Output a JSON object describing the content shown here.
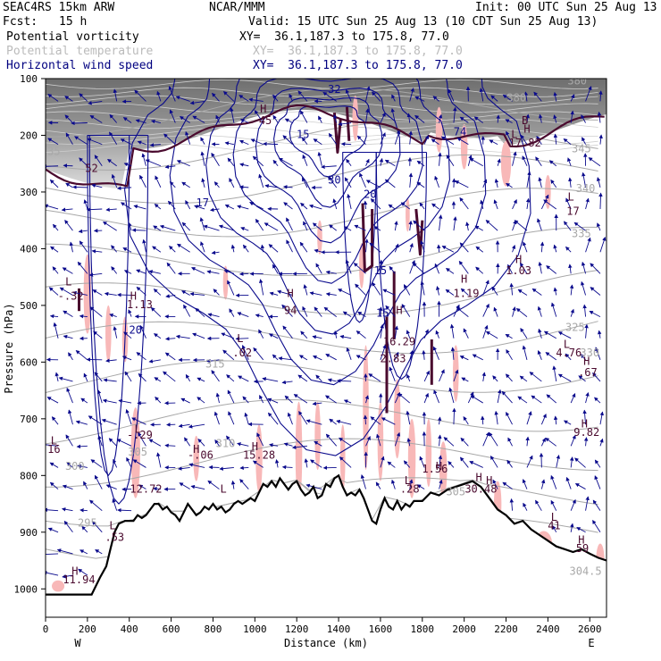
{
  "header": {
    "model": "SEAC4RS 15km ARW",
    "center": "NCAR/MMM",
    "init": "Init: 00 UTC Sun 25 Aug 13",
    "fcst_label": "Fcst:",
    "fcst_value": "15 h",
    "valid": "Valid: 15 UTC Sun 25 Aug 13 (10 CDT Sun 25 Aug 13)"
  },
  "fields": [
    {
      "name": "Potential vorticity",
      "xy": "XY=  36.1,187.3 to 175.8, 77.0",
      "color": "#000000"
    },
    {
      "name": "Potential temperature",
      "xy": "XY=  36.1,187.3 to 175.8, 77.0",
      "color": "#bbbbbb"
    },
    {
      "name": "Horizontal wind speed",
      "xy": "XY=  36.1,187.3 to 175.8, 77.0",
      "color": "#000080"
    }
  ],
  "colors": {
    "pv": "#4a0a2e",
    "theta": "#a8a8a8",
    "wind": "#0a0a8c",
    "pv_neg": "#f8b8b8",
    "terrain": "#000000"
  },
  "chart_data": {
    "type": "cross-section",
    "xlabel": "Distance (km)",
    "ylabel": "Pressure (hPa)",
    "xlim": [
      0,
      2680
    ],
    "ylim": [
      1050,
      100
    ],
    "x_ticks": [
      0,
      200,
      400,
      600,
      800,
      1000,
      1200,
      1400,
      1600,
      1800,
      2000,
      2200,
      2400,
      2600
    ],
    "y_ticks": [
      100,
      200,
      300,
      400,
      500,
      600,
      700,
      800,
      900,
      1000
    ],
    "endpoints": {
      "left": "W",
      "right": "E"
    },
    "terrain_profile": [
      [
        0,
        1010
      ],
      [
        220,
        1010
      ],
      [
        260,
        980
      ],
      [
        290,
        960
      ],
      [
        310,
        930
      ],
      [
        330,
        900
      ],
      [
        350,
        885
      ],
      [
        380,
        880
      ],
      [
        400,
        880
      ],
      [
        420,
        880
      ],
      [
        440,
        870
      ],
      [
        460,
        875
      ],
      [
        480,
        870
      ],
      [
        500,
        860
      ],
      [
        520,
        850
      ],
      [
        540,
        850
      ],
      [
        560,
        860
      ],
      [
        580,
        855
      ],
      [
        600,
        865
      ],
      [
        620,
        870
      ],
      [
        640,
        880
      ],
      [
        660,
        865
      ],
      [
        680,
        850
      ],
      [
        700,
        860
      ],
      [
        720,
        870
      ],
      [
        740,
        865
      ],
      [
        760,
        855
      ],
      [
        780,
        860
      ],
      [
        800,
        850
      ],
      [
        820,
        860
      ],
      [
        840,
        855
      ],
      [
        860,
        865
      ],
      [
        880,
        860
      ],
      [
        900,
        850
      ],
      [
        920,
        845
      ],
      [
        940,
        850
      ],
      [
        960,
        845
      ],
      [
        980,
        840
      ],
      [
        1000,
        845
      ],
      [
        1020,
        830
      ],
      [
        1040,
        815
      ],
      [
        1060,
        820
      ],
      [
        1080,
        810
      ],
      [
        1100,
        820
      ],
      [
        1120,
        805
      ],
      [
        1140,
        815
      ],
      [
        1160,
        825
      ],
      [
        1180,
        815
      ],
      [
        1200,
        810
      ],
      [
        1220,
        825
      ],
      [
        1240,
        835
      ],
      [
        1260,
        830
      ],
      [
        1280,
        820
      ],
      [
        1300,
        840
      ],
      [
        1320,
        835
      ],
      [
        1340,
        815
      ],
      [
        1360,
        820
      ],
      [
        1380,
        805
      ],
      [
        1400,
        800
      ],
      [
        1420,
        820
      ],
      [
        1440,
        835
      ],
      [
        1460,
        830
      ],
      [
        1480,
        835
      ],
      [
        1500,
        825
      ],
      [
        1520,
        840
      ],
      [
        1540,
        860
      ],
      [
        1560,
        880
      ],
      [
        1580,
        885
      ],
      [
        1600,
        860
      ],
      [
        1620,
        840
      ],
      [
        1640,
        855
      ],
      [
        1660,
        860
      ],
      [
        1680,
        845
      ],
      [
        1700,
        860
      ],
      [
        1720,
        850
      ],
      [
        1740,
        855
      ],
      [
        1760,
        845
      ],
      [
        1780,
        845
      ],
      [
        1800,
        845
      ],
      [
        1840,
        830
      ],
      [
        1880,
        835
      ],
      [
        1920,
        825
      ],
      [
        1960,
        820
      ],
      [
        2000,
        815
      ],
      [
        2040,
        810
      ],
      [
        2080,
        820
      ],
      [
        2120,
        840
      ],
      [
        2160,
        860
      ],
      [
        2200,
        870
      ],
      [
        2240,
        885
      ],
      [
        2280,
        880
      ],
      [
        2320,
        895
      ],
      [
        2360,
        905
      ],
      [
        2400,
        915
      ],
      [
        2440,
        925
      ],
      [
        2480,
        930
      ],
      [
        2520,
        935
      ],
      [
        2560,
        930
      ],
      [
        2600,
        938
      ],
      [
        2640,
        945
      ],
      [
        2680,
        950
      ]
    ],
    "labels": [
      {
        "t": "L",
        "x": 110,
        "p": 465,
        "c": "pv"
      },
      {
        "t": "-.32",
        "x": 120,
        "p": 490,
        "c": "pv"
      },
      {
        "t": "H",
        "x": 420,
        "p": 490,
        "c": "pv"
      },
      {
        "t": "1.13",
        "x": 450,
        "p": 505,
        "c": "pv"
      },
      {
        "t": "H",
        "x": 1170,
        "p": 485,
        "c": "pv"
      },
      {
        "t": "94",
        "x": 1170,
        "p": 515,
        "c": "pv"
      },
      {
        "t": "L",
        "x": 930,
        "p": 565,
        "c": "pv"
      },
      {
        "t": ".02",
        "x": 940,
        "p": 590,
        "c": "pv"
      },
      {
        "t": "H",
        "x": 2000,
        "p": 460,
        "c": "pv"
      },
      {
        "t": "1.19",
        "x": 2010,
        "p": 485,
        "c": "pv"
      },
      {
        "t": "H",
        "x": 2260,
        "p": 425,
        "c": "pv"
      },
      {
        "t": "1.03",
        "x": 2260,
        "p": 445,
        "c": "pv"
      },
      {
        "t": "L",
        "x": 2490,
        "p": 575,
        "c": "pv"
      },
      {
        "t": "4.76",
        "x": 2500,
        "p": 590,
        "c": "pv"
      },
      {
        "t": "H",
        "x": 2585,
        "p": 605,
        "c": "pv"
      },
      {
        "t": ".67",
        "x": 2590,
        "p": 625,
        "c": "pv"
      },
      {
        "t": "H",
        "x": 2575,
        "p": 715,
        "c": "pv"
      },
      {
        "t": "9.82",
        "x": 2585,
        "p": 730,
        "c": "pv"
      },
      {
        "t": "L",
        "x": 440,
        "p": 725,
        "c": "pv"
      },
      {
        "t": "-.29",
        "x": 450,
        "p": 735,
        "c": "pv"
      },
      {
        "t": "H",
        "x": 720,
        "p": 760,
        "c": "pv"
      },
      {
        "t": "-.06",
        "x": 740,
        "p": 770,
        "c": "pv"
      },
      {
        "t": "H",
        "x": 1000,
        "p": 755,
        "c": "pv"
      },
      {
        "t": "15.28",
        "x": 1020,
        "p": 770,
        "c": "pv"
      },
      {
        "t": "H",
        "x": 1690,
        "p": 515,
        "c": "pv"
      },
      {
        "t": "16.29",
        "x": 1690,
        "p": 570,
        "c": "pv"
      },
      {
        "t": "2.83",
        "x": 1660,
        "p": 600,
        "c": "pv"
      },
      {
        "t": "L",
        "x": 1730,
        "p": 815,
        "c": "pv"
      },
      {
        "t": ".28",
        "x": 1740,
        "p": 830,
        "c": "pv"
      },
      {
        "t": "H",
        "x": 1880,
        "p": 790,
        "c": "pv"
      },
      {
        "t": "1.56",
        "x": 1860,
        "p": 795,
        "c": "pv"
      },
      {
        "t": "H",
        "x": 2070,
        "p": 810,
        "c": "pv"
      },
      {
        "t": "H",
        "x": 2120,
        "p": 815,
        "c": "pv"
      },
      {
        "t": "30.48",
        "x": 2080,
        "p": 830,
        "c": "pv"
      },
      {
        "t": "L",
        "x": 2430,
        "p": 880,
        "c": "pv"
      },
      {
        "t": "41",
        "x": 2430,
        "p": 895,
        "c": "pv"
      },
      {
        "t": "H",
        "x": 2560,
        "p": 920,
        "c": "pv"
      },
      {
        "t": "59",
        "x": 2565,
        "p": 935,
        "c": "pv"
      },
      {
        "t": "H",
        "x": 140,
        "p": 975,
        "c": "pv"
      },
      {
        "t": "11.94",
        "x": 160,
        "p": 990,
        "c": "pv"
      },
      {
        "t": "L",
        "x": 320,
        "p": 895,
        "c": "pv"
      },
      {
        "t": ".53",
        "x": 330,
        "p": 915,
        "c": "pv"
      },
      {
        "t": "L",
        "x": 40,
        "p": 745,
        "c": "pv"
      },
      {
        "t": "16",
        "x": 40,
        "p": 760,
        "c": "pv"
      },
      {
        "t": "L",
        "x": 850,
        "p": 830,
        "c": "pv"
      },
      {
        "t": "12.72",
        "x": 480,
        "p": 830,
        "c": "pv"
      },
      {
        "t": "H",
        "x": 1040,
        "p": 160,
        "c": "pv"
      },
      {
        "t": "45",
        "x": 1050,
        "p": 180,
        "c": "pv"
      },
      {
        "t": "52",
        "x": 220,
        "p": 265,
        "c": "pv"
      },
      {
        "t": "L",
        "x": 2240,
        "p": 205,
        "c": "pv"
      },
      {
        "t": "H",
        "x": 2300,
        "p": 195,
        "c": "pv"
      },
      {
        "t": "17.82",
        "x": 2290,
        "p": 220,
        "c": "pv"
      },
      {
        "t": "B",
        "x": 2290,
        "p": 180,
        "c": "pv"
      },
      {
        "t": "L",
        "x": 2510,
        "p": 315,
        "c": "pv"
      },
      {
        "t": "17",
        "x": 2520,
        "p": 340,
        "c": "pv"
      },
      {
        "t": "300",
        "x": 140,
        "p": 790,
        "c": "theta"
      },
      {
        "t": "295",
        "x": 200,
        "p": 890,
        "c": "theta"
      },
      {
        "t": "310",
        "x": 860,
        "p": 750,
        "c": "theta"
      },
      {
        "t": "315",
        "x": 810,
        "p": 610,
        "c": "theta"
      },
      {
        "t": "305",
        "x": 440,
        "p": 765,
        "c": "theta"
      },
      {
        "t": "305",
        "x": 1960,
        "p": 835,
        "c": "theta"
      },
      {
        "t": "304.5",
        "x": 2580,
        "p": 975,
        "c": "theta"
      },
      {
        "t": "325",
        "x": 2530,
        "p": 545,
        "c": "theta"
      },
      {
        "t": "330",
        "x": 2600,
        "p": 590,
        "c": "theta"
      },
      {
        "t": "335",
        "x": 2560,
        "p": 380,
        "c": "theta"
      },
      {
        "t": "340",
        "x": 2580,
        "p": 300,
        "c": "theta"
      },
      {
        "t": "345",
        "x": 2560,
        "p": 230,
        "c": "theta"
      },
      {
        "t": "380",
        "x": 2250,
        "p": 140,
        "c": "theta"
      },
      {
        "t": "380",
        "x": 2540,
        "p": 110,
        "c": "theta"
      },
      {
        "t": "35",
        "x": 40,
        "p": 235,
        "c": "theta"
      },
      {
        "t": "20",
        "x": 430,
        "p": 550,
        "c": "wind"
      },
      {
        "t": "17",
        "x": 750,
        "p": 325,
        "c": "wind"
      },
      {
        "t": "30",
        "x": 1380,
        "p": 285,
        "c": "wind"
      },
      {
        "t": "20",
        "x": 1550,
        "p": 310,
        "c": "wind"
      },
      {
        "t": "15",
        "x": 1600,
        "p": 445,
        "c": "wind"
      },
      {
        "t": "15",
        "x": 1610,
        "p": 520,
        "c": "wind"
      },
      {
        "t": "15",
        "x": 1230,
        "p": 205,
        "c": "wind"
      },
      {
        "t": "74",
        "x": 1980,
        "p": 200,
        "c": "wind"
      },
      {
        "t": "32",
        "x": 1380,
        "p": 125,
        "c": "wind"
      }
    ]
  }
}
